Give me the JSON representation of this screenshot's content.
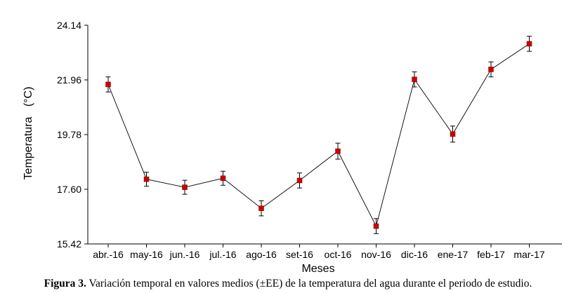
{
  "chart_data": {
    "type": "line",
    "title": "",
    "xlabel": "Meses",
    "ylabel": "Temperatura",
    "ylabel_unit": "(°C)",
    "ylim": [
      15.42,
      24.14
    ],
    "yticks": [
      "15.42",
      "17.60",
      "19.78",
      "21.96",
      "24.14"
    ],
    "categories": [
      "abr.-16",
      "may-16",
      "jun.-16",
      "jul.-16",
      "ago-16",
      "set-16",
      "oct-16",
      "nov-16",
      "dic-16",
      "ene-17",
      "feb-17",
      "mar-17"
    ],
    "series": [
      {
        "values": [
          21.78,
          18.0,
          17.68,
          18.04,
          16.84,
          17.95,
          19.12,
          16.13,
          21.98,
          19.8,
          22.38,
          23.4
        ],
        "errors": [
          0.3,
          0.28,
          0.28,
          0.28,
          0.3,
          0.3,
          0.32,
          0.3,
          0.3,
          0.32,
          0.3,
          0.3
        ]
      }
    ],
    "grid": false,
    "colors": {
      "marker": "#cc0000",
      "line": "#000000",
      "error_bar": "#000000"
    }
  },
  "caption": {
    "label": "Figura 3.",
    "text": " Variación temporal en valores medios (±EE) de la temperatura del agua durante el periodo de estudio."
  }
}
